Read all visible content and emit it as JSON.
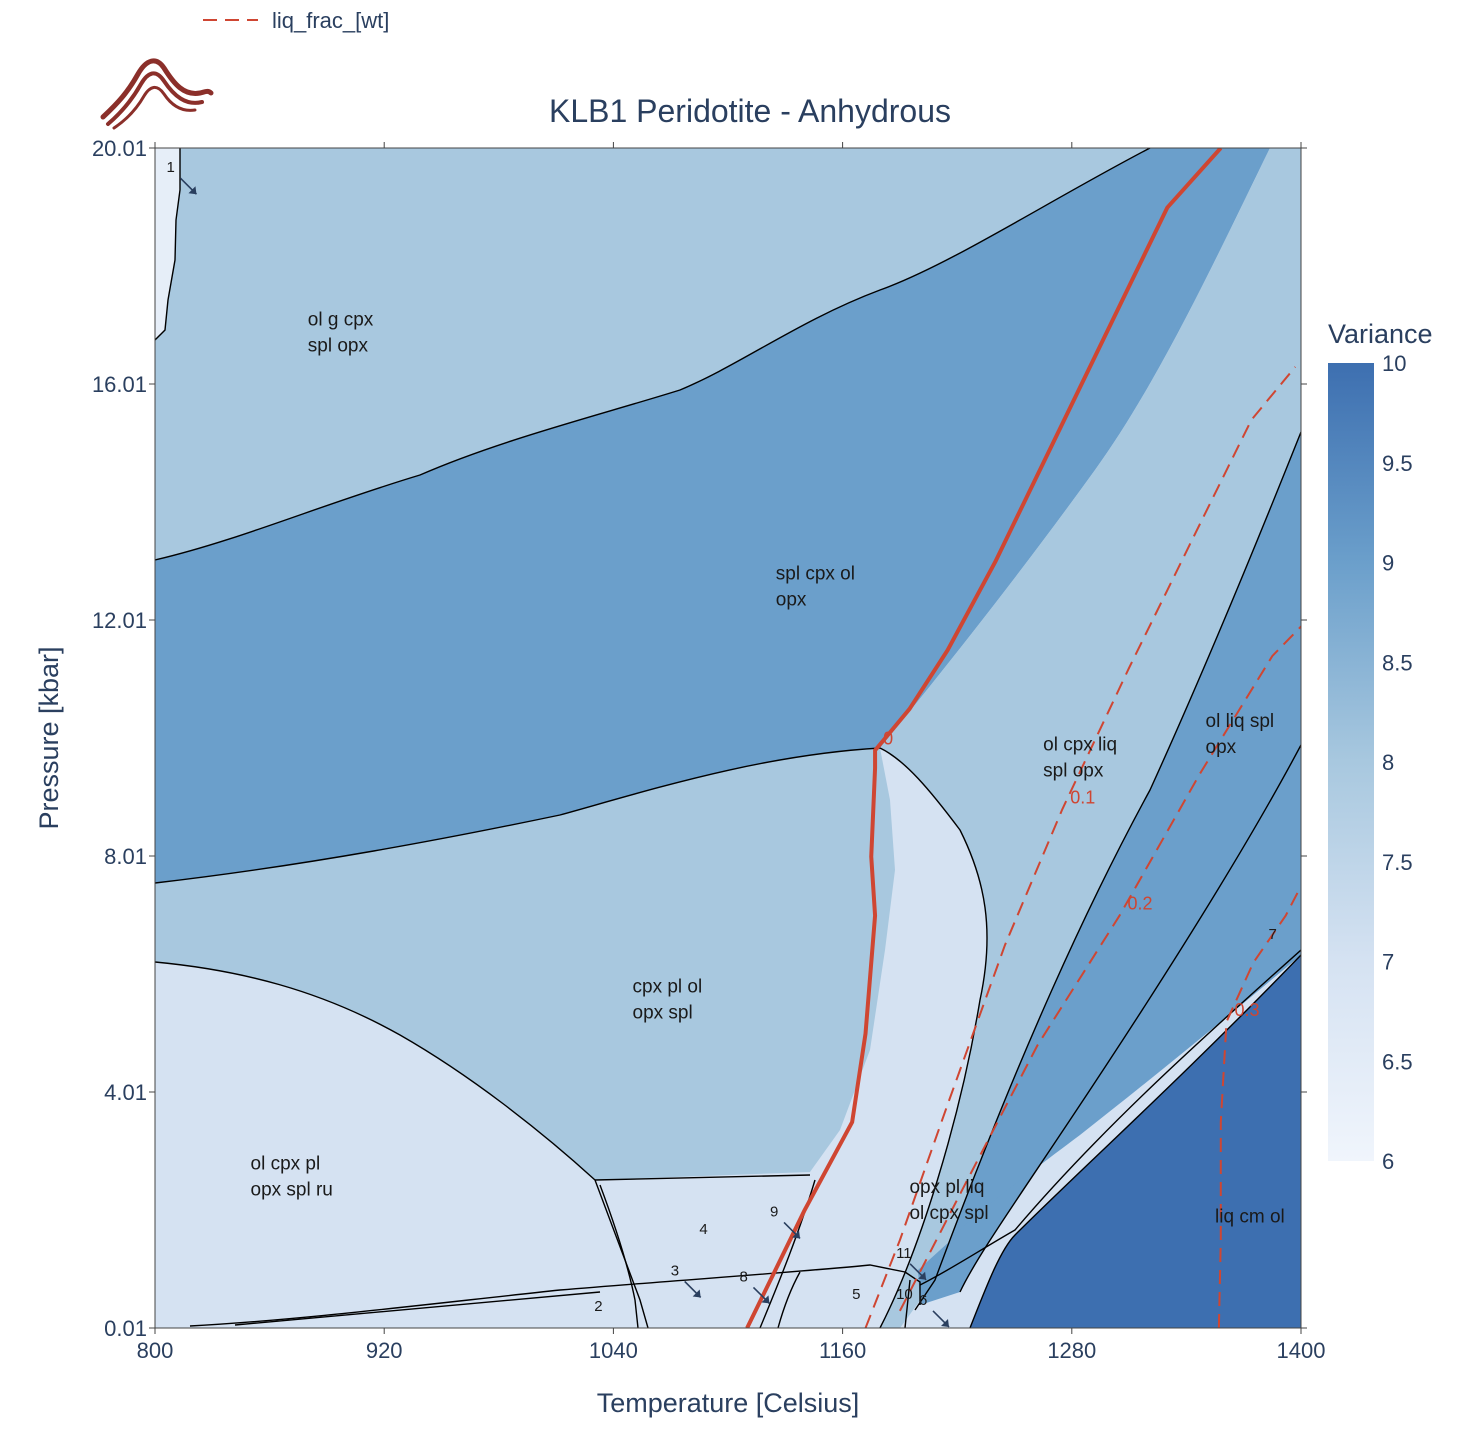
{
  "logo": {
    "icon": "mountain-logo-icon",
    "color": "#8b2f2a"
  },
  "legend": {
    "line_color": "#cf4632",
    "line_style": "dashed",
    "label": "liq_frac_[wt]"
  },
  "chart_data": {
    "type": "heatmap",
    "title": "KLB1 Peridotite - Anhydrous",
    "xlabel": "Temperature [Celsius]",
    "ylabel": "Pressure [kbar]",
    "xlim": [
      800,
      1400
    ],
    "ylim": [
      0.01,
      20.01
    ],
    "xticks": [
      "800",
      "920",
      "1040",
      "1160",
      "1280",
      "1400"
    ],
    "yticks": [
      "0.01",
      "4.01",
      "8.01",
      "12.01",
      "16.01",
      "20.01"
    ],
    "colorbar": {
      "title": "Variance",
      "range": [
        6,
        10
      ],
      "ticks": [
        "6",
        "6.5",
        "7",
        "7.5",
        "8",
        "8.5",
        "9",
        "9.5",
        "10"
      ],
      "colors": [
        "#f0f5fc",
        "#d5e2f2",
        "#a8c8df",
        "#6b9fcb",
        "#3d6fb0"
      ]
    },
    "fields": [
      {
        "name": "ol g cpx\nspl opx",
        "variance": 8,
        "x": 880,
        "y": 17.0
      },
      {
        "name": "spl cpx ol\nopx",
        "variance": 9,
        "x": 1125,
        "y": 12.7
      },
      {
        "name": "cpx pl ol\nopx spl",
        "variance": 8,
        "x": 1050,
        "y": 5.7
      },
      {
        "name": "ol cpx pl\nopx spl ru",
        "variance": 7,
        "x": 850,
        "y": 2.7
      },
      {
        "name": "ol cpx liq\nspl opx",
        "variance": 8,
        "x": 1265,
        "y": 9.8
      },
      {
        "name": "ol liq spl\nopx",
        "variance": 9,
        "x": 1350,
        "y": 10.2
      },
      {
        "name": "opx pl liq\nol cpx spl",
        "variance": 7,
        "x": 1195,
        "y": 2.3
      },
      {
        "name": "liq cm ol",
        "variance": 10,
        "x": 1355,
        "y": 1.8
      }
    ],
    "small_fields": [
      {
        "label": "1",
        "x": 806,
        "y": 19.6,
        "arrow": true
      },
      {
        "label": "2",
        "x": 1030,
        "y": 0.3,
        "arrow": false
      },
      {
        "label": "3",
        "x": 1070,
        "y": 0.9,
        "arrow": true
      },
      {
        "label": "4",
        "x": 1085,
        "y": 1.6,
        "arrow": false
      },
      {
        "label": "5",
        "x": 1165,
        "y": 0.5,
        "arrow": false
      },
      {
        "label": "6",
        "x": 1200,
        "y": 0.4,
        "arrow": true
      },
      {
        "label": "7",
        "x": 1383,
        "y": 6.6,
        "arrow": false
      },
      {
        "label": "8",
        "x": 1106,
        "y": 0.8,
        "arrow": true
      },
      {
        "label": "9",
        "x": 1122,
        "y": 1.9,
        "arrow": true
      },
      {
        "label": "10",
        "x": 1188,
        "y": 0.5,
        "arrow": false
      },
      {
        "label": "11",
        "x": 1188,
        "y": 1.2,
        "arrow": true
      }
    ],
    "liq_frac_contours": [
      {
        "label": "0",
        "level": 0,
        "points": [
          [
            1110,
            0.01
          ],
          [
            1140,
            2.0
          ],
          [
            1165,
            3.5
          ],
          [
            1172,
            5.0
          ],
          [
            1177,
            7.0
          ],
          [
            1175,
            8.0
          ],
          [
            1177,
            9.5
          ],
          [
            1177,
            9.8
          ],
          [
            1195,
            10.5
          ],
          [
            1215,
            11.5
          ],
          [
            1240,
            13.0
          ],
          [
            1270,
            15.0
          ],
          [
            1300,
            17.0
          ],
          [
            1330,
            19.0
          ],
          [
            1358,
            20.01
          ]
        ]
      },
      {
        "label": "0.1",
        "level": 0.1,
        "points": [
          [
            1172,
            0.01
          ],
          [
            1190,
            1.5
          ],
          [
            1215,
            3.8
          ],
          [
            1245,
            6.5
          ],
          [
            1275,
            8.8
          ],
          [
            1310,
            11.2
          ],
          [
            1345,
            13.5
          ],
          [
            1374,
            15.4
          ],
          [
            1397,
            16.3
          ]
        ]
      },
      {
        "label": "0.2",
        "level": 0.2,
        "points": [
          [
            1190,
            0.3
          ],
          [
            1225,
            2.5
          ],
          [
            1262,
            4.8
          ],
          [
            1305,
            7.0
          ],
          [
            1347,
            9.4
          ],
          [
            1385,
            11.4
          ],
          [
            1400,
            11.9
          ]
        ]
      },
      {
        "label": "0.3",
        "level": 0.3,
        "points": [
          [
            1357,
            0.01
          ],
          [
            1358,
            1.5
          ],
          [
            1358,
            3.5
          ],
          [
            1361,
            5.2
          ],
          [
            1375,
            6.2
          ],
          [
            1392,
            7.0
          ],
          [
            1400,
            7.5
          ]
        ]
      }
    ]
  }
}
